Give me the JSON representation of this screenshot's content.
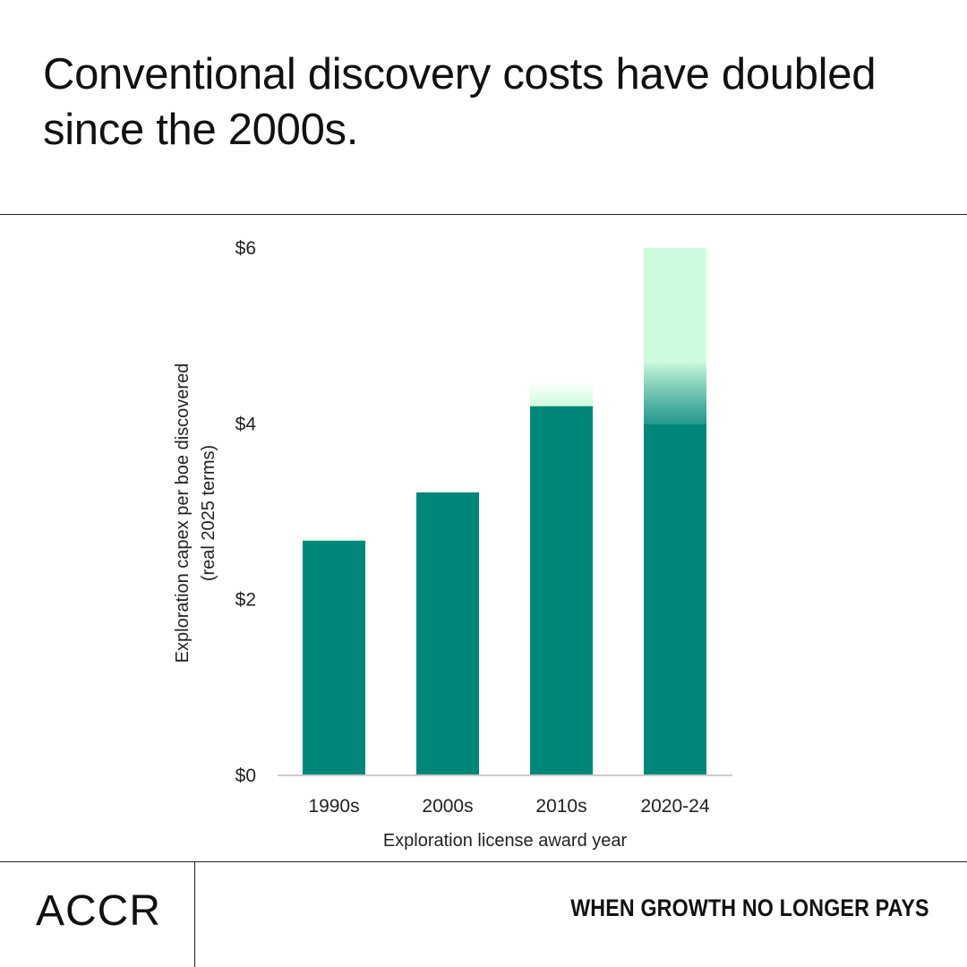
{
  "headline": "Conventional discovery costs have doubled since the 2000s.",
  "footer": {
    "logo": "ACCR",
    "report_title": "WHEN GROWTH NO LONGER PAYS"
  },
  "colors": {
    "bar": "#00877a",
    "range_light": "#ccfbdd",
    "axis": "#cccccc",
    "rule": "#222222"
  },
  "chart_data": {
    "type": "bar",
    "title": "Conventional discovery costs have doubled since the 2000s.",
    "xlabel": "Exploration license award year",
    "ylabel": "Exploration capex per boe discovered",
    "ylabel_sub": "(real 2025 terms)",
    "ylim": [
      0,
      6
    ],
    "yticks": [
      0,
      2,
      4,
      6
    ],
    "ytick_labels": [
      "$0",
      "$2",
      "$4",
      "$6"
    ],
    "categories": [
      "1990s",
      "2000s",
      "2010s",
      "2020-24"
    ],
    "values": [
      2.67,
      3.22,
      4.2,
      4.0
    ],
    "range_high": [
      2.7,
      3.22,
      4.48,
      6.0
    ]
  }
}
